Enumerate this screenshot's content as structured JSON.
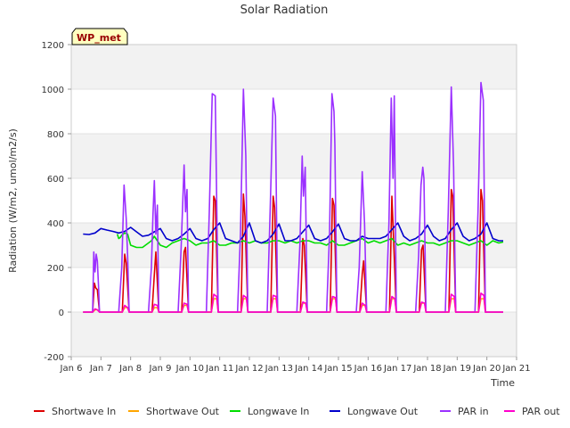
{
  "chart_data": {
    "type": "line",
    "title": "Solar Radiation",
    "xlabel": "Time",
    "ylabel": "Radiation (W/m2, umol/m2/s)",
    "ylim": [
      -200,
      1200
    ],
    "xlim": [
      6,
      21
    ],
    "y_ticks": [
      -200,
      0,
      200,
      400,
      600,
      800,
      1000,
      1200
    ],
    "x_ticks": [
      {
        "v": 6,
        "label": "Jan 6"
      },
      {
        "v": 7,
        "label": "Jan 7"
      },
      {
        "v": 8,
        "label": "Jan 8"
      },
      {
        "v": 9,
        "label": "Jan 9"
      },
      {
        "v": 10,
        "label": "Jan 10"
      },
      {
        "v": 11,
        "label": "Jan 11"
      },
      {
        "v": 12,
        "label": "Jan 12"
      },
      {
        "v": 13,
        "label": "Jan 13"
      },
      {
        "v": 14,
        "label": "Jan 14"
      },
      {
        "v": 15,
        "label": "Jan 15"
      },
      {
        "v": 16,
        "label": "Jan 16"
      },
      {
        "v": 17,
        "label": "Jan 17"
      },
      {
        "v": 18,
        "label": "Jan 18"
      },
      {
        "v": 19,
        "label": "Jan 19"
      },
      {
        "v": 20,
        "label": "Jan 20"
      },
      {
        "v": 21,
        "label": "Jan 21"
      }
    ],
    "annotation": "WP_met",
    "grid": "horizontal bands",
    "legend_position": "bottom",
    "series": [
      {
        "name": "Shortwave In",
        "color": "#dd0000",
        "x": [
          6.4,
          6.72,
          6.78,
          6.82,
          6.88,
          6.95,
          7.6,
          7.72,
          7.8,
          7.85,
          7.95,
          8.6,
          8.72,
          8.8,
          8.85,
          8.95,
          9.6,
          9.72,
          9.8,
          9.85,
          9.95,
          10.6,
          10.72,
          10.8,
          10.85,
          10.95,
          11.6,
          11.72,
          11.8,
          11.85,
          11.95,
          12.6,
          12.72,
          12.8,
          12.85,
          12.95,
          13.6,
          13.72,
          13.8,
          13.85,
          13.95,
          14.6,
          14.72,
          14.8,
          14.85,
          14.95,
          15.6,
          15.72,
          15.8,
          15.85,
          15.95,
          16.6,
          16.72,
          16.8,
          16.85,
          16.95,
          17.6,
          17.72,
          17.8,
          17.85,
          17.95,
          18.6,
          18.72,
          18.8,
          18.85,
          18.95,
          19.6,
          19.72,
          19.8,
          19.85,
          19.95,
          20.55
        ],
        "y": [
          0,
          0,
          130,
          110,
          100,
          0,
          0,
          0,
          260,
          220,
          0,
          0,
          0,
          170,
          270,
          0,
          0,
          0,
          270,
          290,
          0,
          0,
          0,
          520,
          500,
          0,
          0,
          0,
          530,
          430,
          0,
          0,
          0,
          520,
          470,
          0,
          0,
          0,
          330,
          300,
          0,
          0,
          0,
          510,
          480,
          0,
          0,
          0,
          170,
          230,
          0,
          0,
          0,
          520,
          350,
          0,
          0,
          0,
          280,
          300,
          0,
          0,
          0,
          550,
          520,
          0,
          0,
          0,
          550,
          500,
          0,
          0
        ]
      },
      {
        "name": "Shortwave Out",
        "color": "#ffa500",
        "x": [
          6.4,
          6.72,
          6.8,
          6.88,
          6.95,
          7.6,
          7.72,
          7.8,
          7.9,
          7.95,
          8.6,
          8.72,
          8.8,
          8.9,
          8.95,
          9.6,
          9.72,
          9.8,
          9.9,
          9.95,
          10.6,
          10.72,
          10.8,
          10.9,
          10.95,
          11.6,
          11.72,
          11.8,
          11.9,
          11.95,
          12.6,
          12.72,
          12.8,
          12.9,
          12.95,
          13.6,
          13.72,
          13.8,
          13.9,
          13.95,
          14.6,
          14.72,
          14.8,
          14.9,
          14.95,
          15.6,
          15.72,
          15.8,
          15.9,
          15.95,
          16.6,
          16.72,
          16.8,
          16.9,
          16.95,
          17.6,
          17.72,
          17.8,
          17.9,
          17.95,
          18.6,
          18.72,
          18.8,
          18.9,
          18.95,
          19.6,
          19.72,
          19.8,
          19.9,
          19.95,
          20.55
        ],
        "y": [
          0,
          0,
          10,
          10,
          0,
          0,
          0,
          20,
          20,
          0,
          0,
          0,
          20,
          20,
          0,
          0,
          0,
          30,
          30,
          0,
          0,
          0,
          60,
          60,
          0,
          0,
          0,
          60,
          60,
          0,
          0,
          0,
          60,
          60,
          0,
          0,
          0,
          40,
          40,
          0,
          0,
          0,
          60,
          60,
          0,
          0,
          0,
          30,
          30,
          0,
          0,
          0,
          60,
          60,
          0,
          0,
          0,
          40,
          40,
          0,
          0,
          0,
          60,
          60,
          0,
          0,
          0,
          60,
          60,
          0,
          0
        ]
      },
      {
        "name": "Longwave In",
        "color": "#00dd00",
        "x": [
          7.55,
          7.6,
          7.65,
          7.7,
          7.8,
          7.9,
          8.0,
          8.2,
          8.4,
          8.5,
          8.6,
          8.7,
          8.8,
          9.0,
          9.2,
          9.4,
          9.6,
          9.8,
          10.0,
          10.2,
          10.4,
          10.6,
          10.8,
          11.0,
          11.2,
          11.4,
          11.6,
          11.8,
          12.0,
          12.2,
          12.4,
          12.6,
          12.8,
          13.0,
          13.2,
          13.4,
          13.6,
          13.8,
          14.0,
          14.2,
          14.4,
          14.6,
          14.8,
          15.0,
          15.2,
          15.4,
          15.6,
          15.8,
          16.0,
          16.2,
          16.4,
          16.6,
          16.8,
          17.0,
          17.2,
          17.4,
          17.6,
          17.8,
          18.0,
          18.2,
          18.4,
          18.6,
          18.8,
          19.0,
          19.2,
          19.4,
          19.6,
          19.8,
          20.0,
          20.2,
          20.4,
          20.55
        ],
        "y": [
          350,
          330,
          335,
          345,
          355,
          350,
          300,
          290,
          290,
          300,
          310,
          320,
          340,
          300,
          290,
          310,
          320,
          330,
          320,
          300,
          310,
          310,
          320,
          300,
          300,
          310,
          310,
          320,
          310,
          320,
          310,
          310,
          320,
          320,
          310,
          320,
          310,
          320,
          320,
          310,
          310,
          300,
          320,
          300,
          300,
          310,
          320,
          330,
          310,
          320,
          310,
          320,
          330,
          300,
          310,
          300,
          310,
          320,
          310,
          310,
          300,
          310,
          320,
          320,
          310,
          300,
          310,
          320,
          300,
          320,
          310,
          315
        ]
      },
      {
        "name": "Longwave Out",
        "color": "#0000cc",
        "x": [
          6.4,
          6.6,
          6.8,
          7.0,
          7.2,
          7.4,
          7.6,
          7.8,
          8.0,
          8.2,
          8.4,
          8.6,
          8.8,
          9.0,
          9.2,
          9.4,
          9.6,
          9.8,
          10.0,
          10.2,
          10.4,
          10.6,
          10.8,
          11.0,
          11.2,
          11.4,
          11.6,
          11.8,
          12.0,
          12.2,
          12.4,
          12.6,
          12.8,
          13.0,
          13.2,
          13.4,
          13.6,
          13.8,
          14.0,
          14.2,
          14.4,
          14.6,
          14.8,
          15.0,
          15.2,
          15.4,
          15.6,
          15.8,
          16.0,
          16.2,
          16.4,
          16.6,
          16.8,
          17.0,
          17.2,
          17.4,
          17.6,
          17.8,
          18.0,
          18.2,
          18.4,
          18.6,
          18.8,
          19.0,
          19.2,
          19.4,
          19.6,
          19.8,
          20.0,
          20.2,
          20.4,
          20.55
        ],
        "y": [
          350,
          348,
          355,
          375,
          368,
          362,
          355,
          362,
          380,
          360,
          340,
          345,
          360,
          375,
          330,
          320,
          330,
          350,
          375,
          330,
          320,
          330,
          370,
          400,
          330,
          320,
          310,
          340,
          400,
          320,
          310,
          320,
          350,
          395,
          320,
          320,
          330,
          360,
          390,
          330,
          320,
          330,
          360,
          395,
          330,
          320,
          320,
          340,
          330,
          330,
          330,
          340,
          370,
          400,
          340,
          320,
          330,
          350,
          390,
          340,
          320,
          330,
          370,
          400,
          340,
          320,
          330,
          350,
          400,
          330,
          320,
          320
        ]
      },
      {
        "name": "PAR in",
        "color": "#9b30ff",
        "x": [
          6.4,
          6.72,
          6.76,
          6.8,
          6.84,
          6.88,
          6.92,
          6.95,
          7.6,
          7.7,
          7.78,
          7.85,
          7.9,
          7.95,
          8.6,
          8.7,
          8.75,
          8.8,
          8.85,
          8.9,
          8.95,
          9.6,
          9.7,
          9.8,
          9.85,
          9.9,
          9.95,
          10.55,
          10.65,
          10.75,
          10.85,
          10.95,
          11.6,
          11.7,
          11.8,
          11.88,
          11.95,
          12.6,
          12.7,
          12.8,
          12.88,
          12.95,
          13.6,
          13.7,
          13.78,
          13.82,
          13.88,
          13.95,
          14.6,
          14.7,
          14.78,
          14.85,
          14.88,
          14.95,
          15.6,
          15.7,
          15.8,
          15.88,
          15.95,
          16.6,
          16.7,
          16.78,
          16.84,
          16.88,
          16.95,
          17.6,
          17.7,
          17.78,
          17.84,
          17.88,
          17.95,
          18.6,
          18.7,
          18.8,
          18.88,
          18.95,
          19.6,
          19.7,
          19.8,
          19.88,
          19.95,
          20.55
        ],
        "y": [
          0,
          0,
          270,
          180,
          260,
          230,
          110,
          0,
          0,
          200,
          570,
          420,
          250,
          0,
          0,
          200,
          430,
          590,
          350,
          480,
          0,
          0,
          280,
          660,
          450,
          550,
          0,
          0,
          450,
          980,
          970,
          0,
          0,
          350,
          1000,
          700,
          0,
          0,
          450,
          960,
          880,
          0,
          0,
          300,
          700,
          520,
          650,
          0,
          0,
          350,
          980,
          900,
          750,
          0,
          0,
          200,
          630,
          400,
          0,
          0,
          400,
          960,
          600,
          970,
          0,
          0,
          250,
          570,
          650,
          600,
          0,
          0,
          450,
          1010,
          650,
          0,
          0,
          450,
          1030,
          950,
          0,
          0
        ]
      },
      {
        "name": "PAR out",
        "color": "#ff00cc",
        "x": [
          6.4,
          6.72,
          6.8,
          6.88,
          6.95,
          7.6,
          7.72,
          7.8,
          7.9,
          7.95,
          8.6,
          8.72,
          8.8,
          8.9,
          8.95,
          9.6,
          9.72,
          9.8,
          9.9,
          9.95,
          10.6,
          10.72,
          10.8,
          10.9,
          10.95,
          11.6,
          11.72,
          11.8,
          11.9,
          11.95,
          12.6,
          12.72,
          12.8,
          12.9,
          12.95,
          13.6,
          13.72,
          13.8,
          13.9,
          13.95,
          14.6,
          14.72,
          14.8,
          14.9,
          14.95,
          15.6,
          15.72,
          15.8,
          15.9,
          15.95,
          16.6,
          16.72,
          16.8,
          16.9,
          16.95,
          17.6,
          17.72,
          17.8,
          17.9,
          17.95,
          18.6,
          18.72,
          18.8,
          18.9,
          18.95,
          19.6,
          19.72,
          19.8,
          19.9,
          19.95,
          20.55
        ],
        "y": [
          0,
          0,
          15,
          10,
          0,
          0,
          0,
          30,
          20,
          0,
          0,
          0,
          35,
          30,
          0,
          0,
          0,
          40,
          35,
          0,
          0,
          0,
          80,
          70,
          0,
          0,
          0,
          75,
          65,
          0,
          0,
          0,
          75,
          70,
          0,
          0,
          0,
          45,
          40,
          0,
          0,
          0,
          70,
          65,
          0,
          0,
          0,
          40,
          30,
          0,
          0,
          0,
          70,
          60,
          0,
          0,
          0,
          45,
          40,
          0,
          0,
          0,
          80,
          70,
          0,
          0,
          0,
          85,
          75,
          0,
          0
        ]
      }
    ]
  }
}
